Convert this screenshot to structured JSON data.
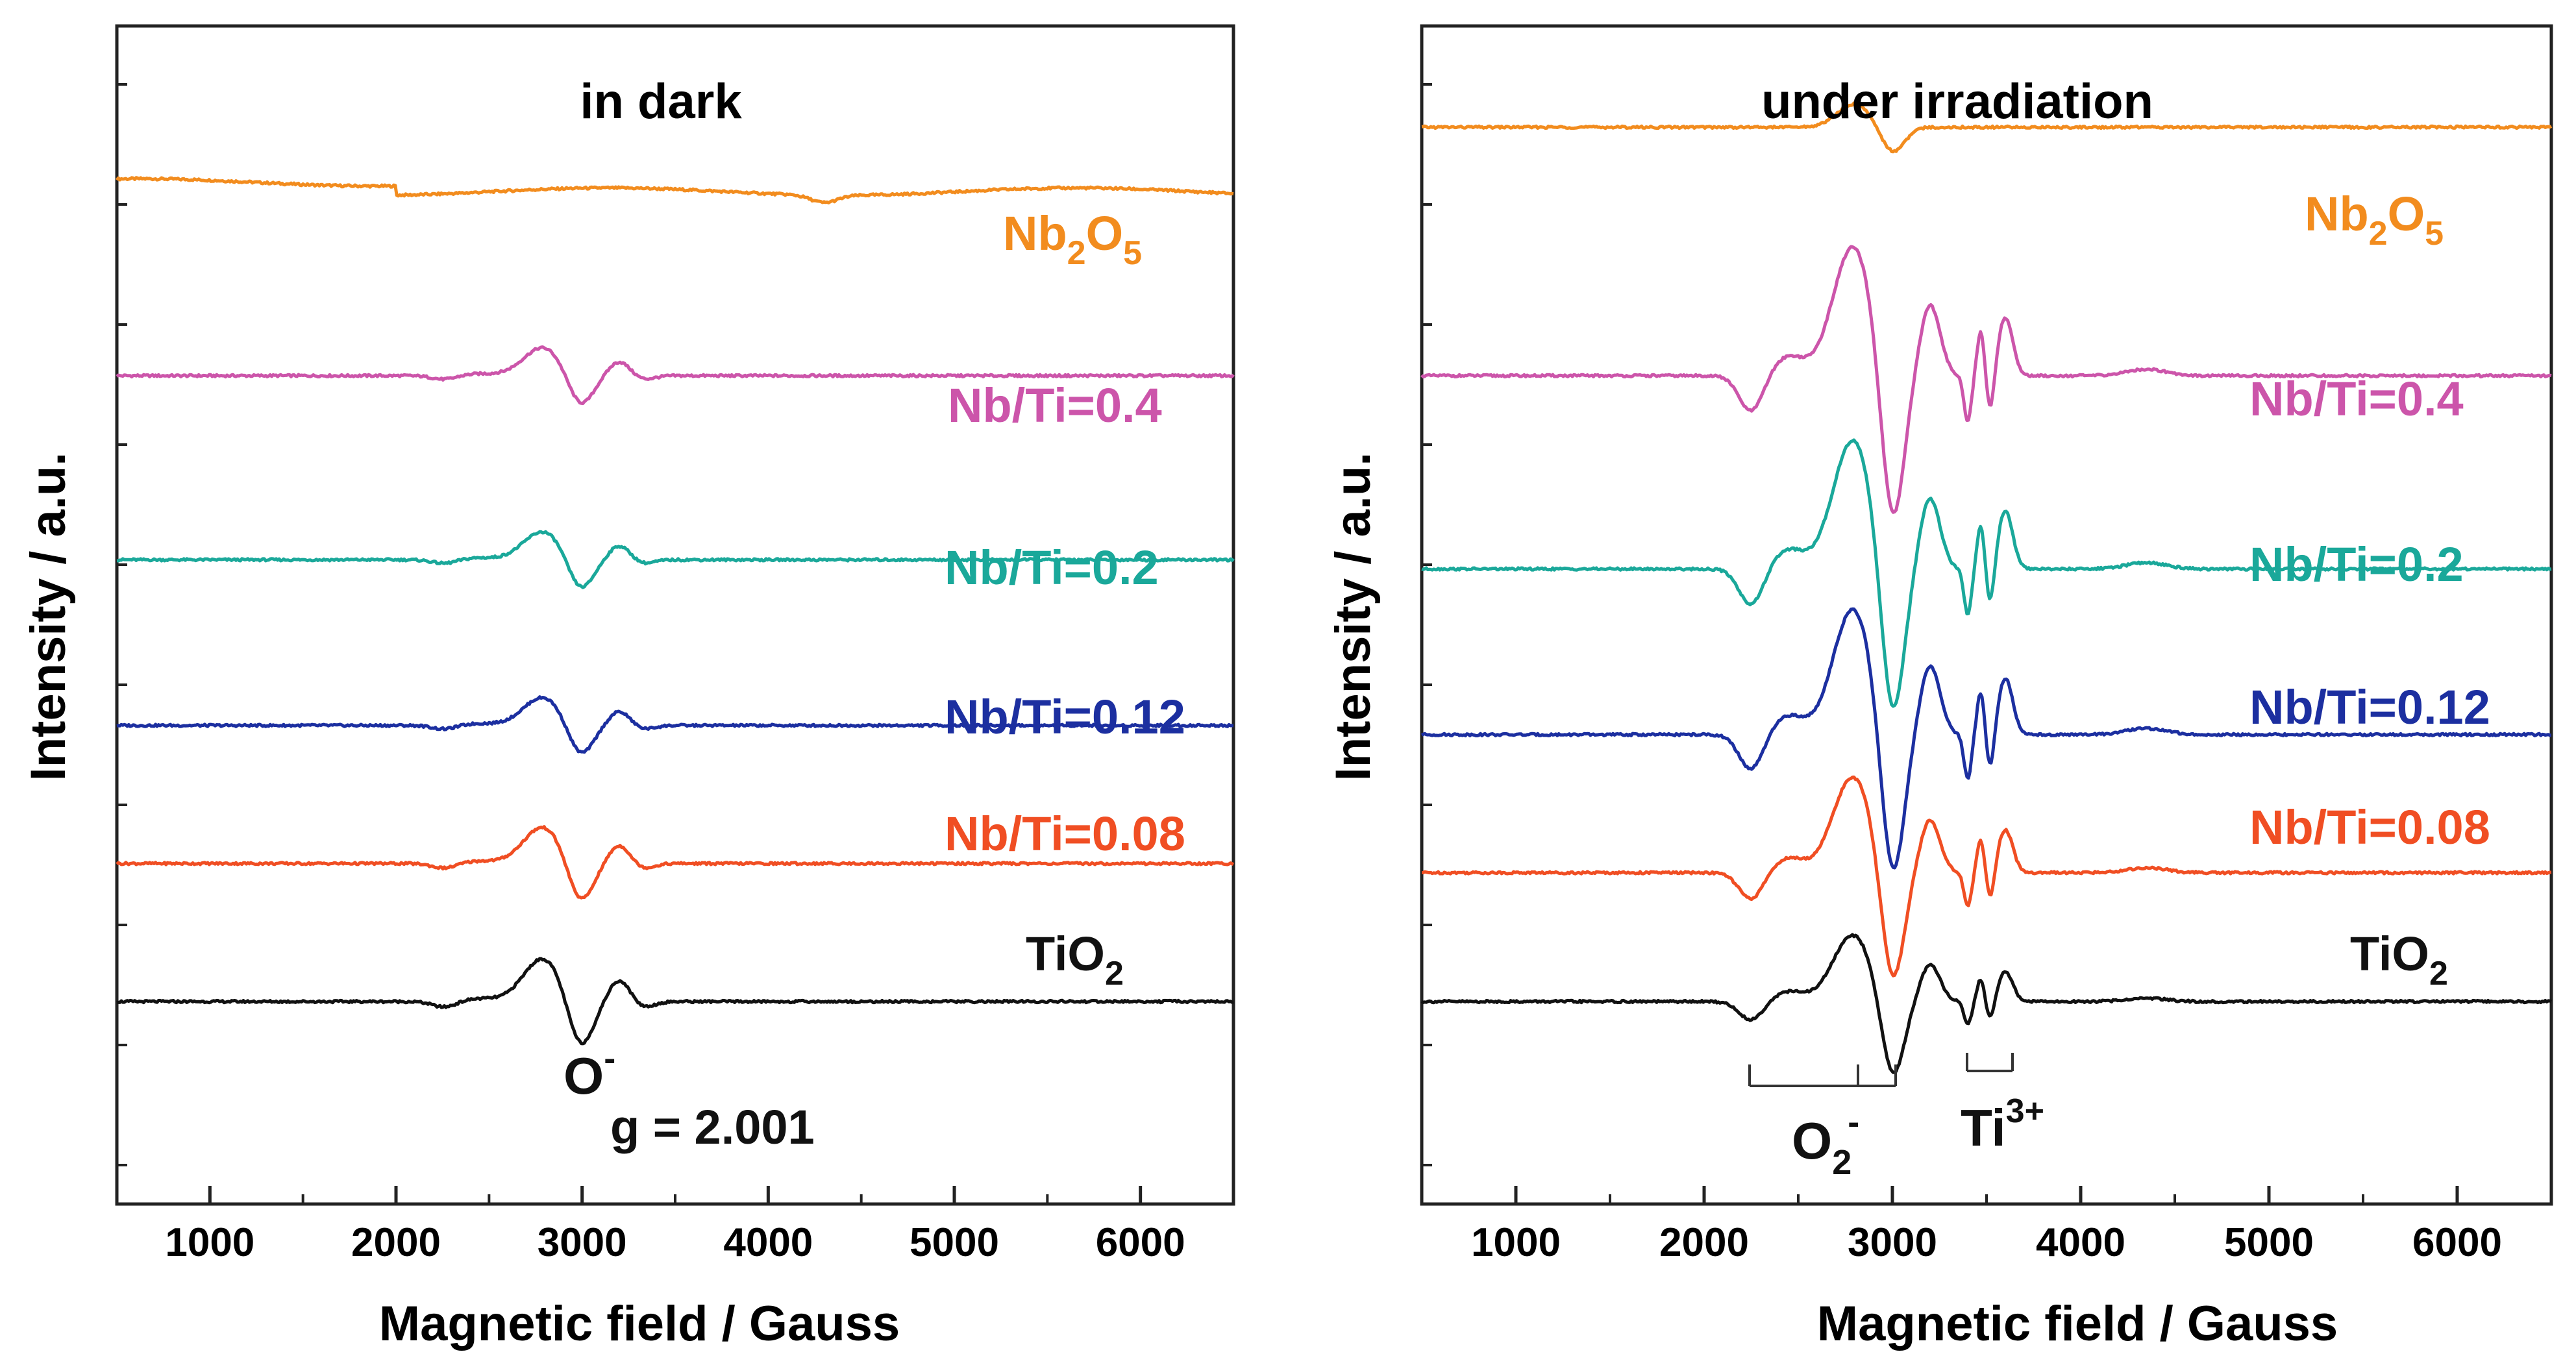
{
  "chart_data": [
    {
      "type": "line",
      "title": "in dark",
      "xlabel": "Magnetic field / Gauss",
      "ylabel": "Intensity / a.u.",
      "xlim": [
        500,
        6500
      ],
      "xticks": [
        1000,
        2000,
        3000,
        4000,
        5000,
        6000
      ],
      "xtick_labels": [
        "1000",
        "2000",
        "3000",
        "4000",
        "5000",
        "6000"
      ],
      "ylim": [
        0,
        6.4
      ],
      "grid": false,
      "series": [
        {
          "name": "Nb2O5",
          "label_main": "Nb",
          "label_sub1": "2",
          "label_mid": "O",
          "label_sub2": "5",
          "color": "#f28c1e",
          "baseline": 5.5,
          "amp": 0.0,
          "features": [
            [
              2000,
              0.1,
              0,
              "step"
            ],
            [
              4300,
              -0.04,
              100,
              "dip"
            ]
          ]
        },
        {
          "name": "Nb/Ti=0.4",
          "label": "Nb/Ti=0.4",
          "color": "#cc55aa",
          "baseline": 4.5,
          "amp": 0.17,
          "features": []
        },
        {
          "name": "Nb/Ti=0.2",
          "label": "Nb/Ti=0.2",
          "color": "#1aa89a",
          "baseline": 3.5,
          "amp": 0.17,
          "features": []
        },
        {
          "name": "Nb/Ti=0.12",
          "label": "Nb/Ti=0.12",
          "color": "#1c2fa0",
          "baseline": 2.6,
          "amp": 0.17,
          "features": []
        },
        {
          "name": "Nb/Ti=0.08",
          "label": "Nb/Ti=0.08",
          "color": "#f04e23",
          "baseline": 1.85,
          "amp": 0.22,
          "features": []
        },
        {
          "name": "TiO2",
          "label_main": "TiO",
          "label_sub1": "2",
          "color": "#111111",
          "baseline": 1.1,
          "amp": 0.26,
          "features": []
        }
      ],
      "annotations": {
        "o_minus": "O",
        "o_minus_sup": "-",
        "g_value": "g = 2.001"
      }
    },
    {
      "type": "line",
      "title": "under irradiation",
      "xlabel": "Magnetic field / Gauss",
      "ylabel": "Intensity / a.u.",
      "xlim": [
        500,
        6500
      ],
      "xticks": [
        1000,
        2000,
        3000,
        4000,
        5000,
        6000
      ],
      "xtick_labels": [
        "1000",
        "2000",
        "3000",
        "4000",
        "5000",
        "6000"
      ],
      "ylim": [
        0,
        6.4
      ],
      "grid": false,
      "series": [
        {
          "name": "Nb2O5",
          "label_main": "Nb",
          "label_sub1": "2",
          "label_mid": "O",
          "label_sub2": "5",
          "color": "#f28c1e",
          "baseline": 5.85,
          "amp": 0.14
        },
        {
          "name": "Nb/Ti=0.4",
          "label": "Nb/Ti=0.4",
          "color": "#cc55aa",
          "baseline": 4.5,
          "amp": 0.7
        },
        {
          "name": "Nb/Ti=0.2",
          "label": "Nb/Ti=0.2",
          "color": "#1aa89a",
          "baseline": 3.45,
          "amp": 0.7
        },
        {
          "name": "Nb/Ti=0.12",
          "label": "Nb/Ti=0.12",
          "color": "#1c2fa0",
          "baseline": 2.55,
          "amp": 0.68
        },
        {
          "name": "Nb/Ti=0.08",
          "label": "Nb/Ti=0.08",
          "color": "#f04e23",
          "baseline": 1.8,
          "amp": 0.52
        },
        {
          "name": "TiO2",
          "label_main": "TiO",
          "label_sub1": "2",
          "color": "#111111",
          "baseline": 1.1,
          "amp": 0.36
        }
      ],
      "annotations": {
        "o2_main": "O",
        "o2_sub": "2",
        "o2_sup": "-",
        "ti_main": "Ti",
        "ti_sup": "3+"
      }
    }
  ]
}
